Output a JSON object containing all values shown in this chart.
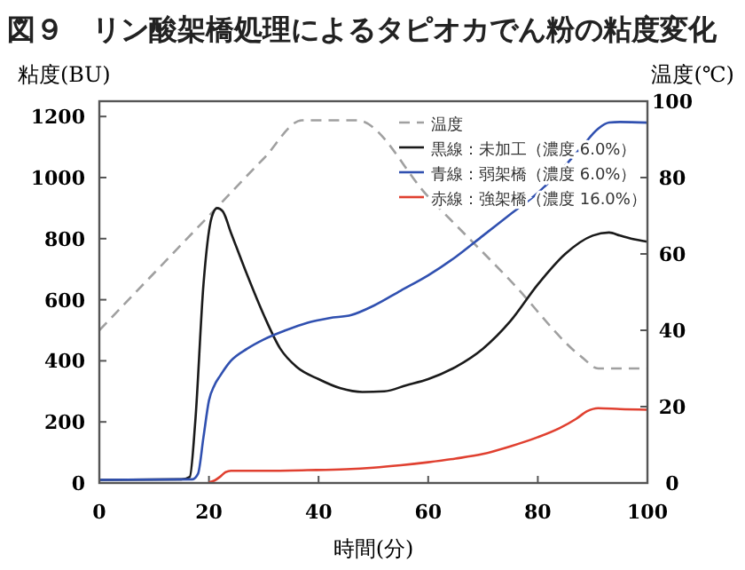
{
  "chart_data": {
    "type": "line",
    "title": "図９　リン酸架橋処理によるタピオカでん粉の粘度変化",
    "xlabel": "時間(分)",
    "ylabel": "粘度(BU)",
    "y2label": "温度(℃)",
    "xlim": [
      0,
      100
    ],
    "xticks": [
      0,
      20,
      40,
      60,
      80,
      100
    ],
    "ylim": [
      0,
      1250
    ],
    "yticks": [
      0,
      200,
      400,
      600,
      800,
      1000,
      1200
    ],
    "y2lim": [
      0,
      100
    ],
    "y2ticks": [
      0,
      20,
      40,
      60,
      80,
      100
    ],
    "legend": "top right",
    "grid": false,
    "series": [
      {
        "name": "温度",
        "color": "#a0a0a0",
        "line_style": "dashed",
        "axis": "y2",
        "x": [
          0,
          10,
          20,
          30,
          37,
          42,
          47,
          60,
          75,
          88,
          91,
          93,
          100
        ],
        "values": [
          40,
          55,
          70,
          85,
          95,
          95,
          95,
          75,
          53,
          33,
          30,
          30,
          30
        ]
      },
      {
        "name": "黒線：未加工（濃度 6.0%）",
        "color": "#1a1a1a",
        "x": [
          0,
          15,
          16.5,
          17.5,
          19,
          20.5,
          21.5,
          22.5,
          24,
          27,
          30,
          33,
          36,
          40,
          44,
          48,
          52,
          56,
          60,
          65,
          70,
          75,
          80,
          85,
          90,
          93,
          95,
          97,
          100
        ],
        "values": [
          10,
          12,
          20,
          200,
          650,
          870,
          900,
          890,
          820,
          680,
          550,
          440,
          380,
          340,
          310,
          298,
          300,
          320,
          340,
          380,
          440,
          530,
          650,
          750,
          810,
          820,
          810,
          800,
          790
        ]
      },
      {
        "name": "青線：弱架橋（濃度 6.0%）",
        "color": "#3050b0",
        "x": [
          0,
          17,
          18,
          19,
          20,
          21,
          22,
          24,
          27,
          30,
          34,
          38,
          42,
          46,
          50,
          55,
          60,
          65,
          70,
          75,
          80,
          84,
          88,
          91,
          93,
          95,
          100
        ],
        "values": [
          10,
          12,
          30,
          150,
          270,
          320,
          350,
          400,
          440,
          470,
          500,
          525,
          540,
          550,
          580,
          630,
          680,
          740,
          810,
          880,
          950,
          1020,
          1100,
          1160,
          1180,
          1182,
          1180
        ]
      },
      {
        "name": "赤線：強架橋（濃度 16.0%）",
        "color": "#e04030",
        "x": [
          20,
          21,
          22,
          23,
          24,
          30,
          38,
          45,
          50,
          55,
          60,
          65,
          70,
          75,
          80,
          84,
          87,
          89,
          91,
          95,
          100
        ],
        "values": [
          2,
          8,
          20,
          35,
          40,
          40,
          42,
          45,
          50,
          58,
          68,
          80,
          95,
          120,
          150,
          180,
          210,
          235,
          245,
          242,
          240
        ]
      }
    ]
  }
}
